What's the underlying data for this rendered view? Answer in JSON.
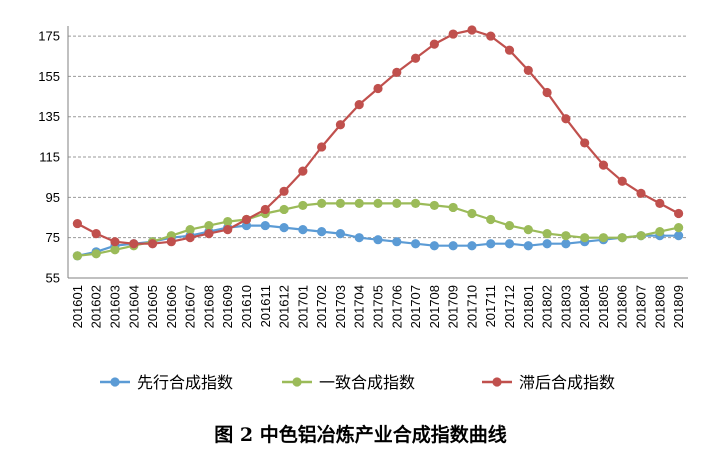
{
  "chart_data": {
    "type": "line",
    "title": "图 2 中色铝冶炼产业合成指数曲线",
    "xlabel": "",
    "ylabel": "",
    "ylim": [
      55,
      180
    ],
    "yticks": [
      55,
      75,
      95,
      115,
      135,
      155,
      175
    ],
    "grid": true,
    "legend_position": "bottom",
    "categories": [
      "201601",
      "201602",
      "201603",
      "201604",
      "201605",
      "201606",
      "201607",
      "201608",
      "201609",
      "201610",
      "201611",
      "201612",
      "201701",
      "201702",
      "201703",
      "201704",
      "201705",
      "201706",
      "201707",
      "201708",
      "201709",
      "201710",
      "201711",
      "201712",
      "201801",
      "201802",
      "201803",
      "201804",
      "201805",
      "201806",
      "201807",
      "201808",
      "201809"
    ],
    "series": [
      {
        "name": "先行合成指数",
        "color": "#5b9bd5",
        "values": [
          66,
          68,
          71,
          72,
          73,
          75,
          76,
          78,
          80,
          81,
          81,
          80,
          79,
          78,
          77,
          75,
          74,
          73,
          72,
          71,
          71,
          71,
          72,
          72,
          71,
          72,
          72,
          73,
          74,
          75,
          76,
          76,
          76
        ]
      },
      {
        "name": "一致合成指数",
        "color": "#9bbb59",
        "values": [
          66,
          67,
          69,
          71,
          73,
          76,
          79,
          81,
          83,
          84,
          87,
          89,
          91,
          92,
          92,
          92,
          92,
          92,
          92,
          91,
          90,
          87,
          84,
          81,
          79,
          77,
          76,
          75,
          75,
          75,
          76,
          78,
          80
        ]
      },
      {
        "name": "滞后合成指数",
        "color": "#c0504d",
        "values": [
          82,
          77,
          73,
          72,
          72,
          73,
          75,
          77,
          79,
          84,
          89,
          98,
          108,
          120,
          131,
          141,
          149,
          157,
          164,
          171,
          176,
          178,
          175,
          168,
          158,
          147,
          134,
          122,
          111,
          103,
          97,
          92,
          87
        ]
      }
    ]
  }
}
